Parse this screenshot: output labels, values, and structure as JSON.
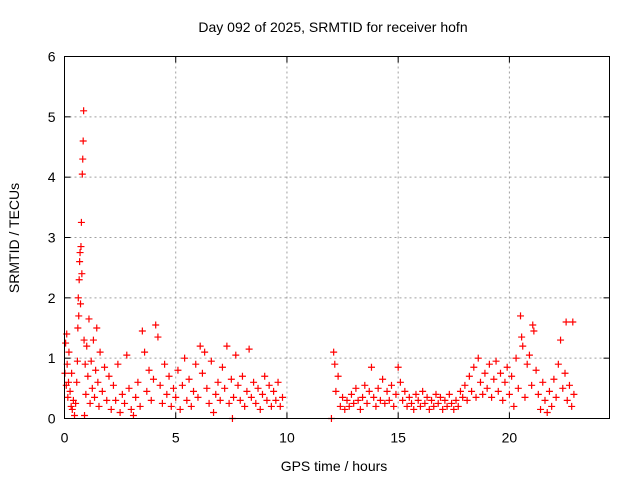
{
  "chart_data": {
    "type": "scatter",
    "title": "Day 092 of 2025, SRMTID for receiver hofn",
    "xlabel": "GPS time / hours",
    "ylabel": "SRMTID / TECUs",
    "xlim": [
      0,
      24.5
    ],
    "ylim": [
      0,
      6
    ],
    "xticks": [
      0,
      5,
      10,
      15,
      20
    ],
    "yticks": [
      0,
      1,
      2,
      3,
      4,
      5,
      6
    ],
    "xtick_labels": [
      "0",
      "5",
      "10",
      "15",
      "20"
    ],
    "ytick_labels": [
      "0",
      "1",
      "2",
      "3",
      "4",
      "5",
      "6"
    ],
    "grid": true,
    "marker": "+",
    "color": "#ff0000",
    "series": [
      {
        "name": "SRMTID",
        "points": [
          [
            0.02,
            0.75
          ],
          [
            0.05,
            1.25
          ],
          [
            0.08,
            0.55
          ],
          [
            0.1,
            1.4
          ],
          [
            0.12,
            0.9
          ],
          [
            0.15,
            0.35
          ],
          [
            0.18,
            0.6
          ],
          [
            0.2,
            1.1
          ],
          [
            0.25,
            0.45
          ],
          [
            0.3,
            0.2
          ],
          [
            0.32,
            0.75
          ],
          [
            0.35,
            0.15
          ],
          [
            0.4,
            0.3
          ],
          [
            0.45,
            0.05
          ],
          [
            0.5,
            0.25
          ],
          [
            0.55,
            0.6
          ],
          [
            0.58,
            0.95
          ],
          [
            0.6,
            1.5
          ],
          [
            0.62,
            2.0
          ],
          [
            0.64,
            1.7
          ],
          [
            0.66,
            2.3
          ],
          [
            0.68,
            2.6
          ],
          [
            0.7,
            2.75
          ],
          [
            0.72,
            1.9
          ],
          [
            0.74,
            2.85
          ],
          [
            0.76,
            3.25
          ],
          [
            0.78,
            2.4
          ],
          [
            0.8,
            4.05
          ],
          [
            0.82,
            4.3
          ],
          [
            0.84,
            4.6
          ],
          [
            0.86,
            5.1
          ],
          [
            0.88,
            1.3
          ],
          [
            0.9,
            0.05
          ],
          [
            0.93,
            0.9
          ],
          [
            0.96,
            0.4
          ],
          [
            1.0,
            1.2
          ],
          [
            1.05,
            0.7
          ],
          [
            1.1,
            1.65
          ],
          [
            1.15,
            0.25
          ],
          [
            1.2,
            0.95
          ],
          [
            1.25,
            0.5
          ],
          [
            1.3,
            1.3
          ],
          [
            1.35,
            0.35
          ],
          [
            1.4,
            0.8
          ],
          [
            1.45,
            1.5
          ],
          [
            1.5,
            0.6
          ],
          [
            1.55,
            0.2
          ],
          [
            1.6,
            1.1
          ],
          [
            1.7,
            0.45
          ],
          [
            1.8,
            0.85
          ],
          [
            1.9,
            0.3
          ],
          [
            2.0,
            0.7
          ],
          [
            2.1,
            0.15
          ],
          [
            2.2,
            0.55
          ],
          [
            2.3,
            0.3
          ],
          [
            2.4,
            0.9
          ],
          [
            2.5,
            0.1
          ],
          [
            2.6,
            0.4
          ],
          [
            2.7,
            0.25
          ],
          [
            2.8,
            1.05
          ],
          [
            2.9,
            0.5
          ],
          [
            3.0,
            0.15
          ],
          [
            3.1,
            0.05
          ],
          [
            3.2,
            0.35
          ],
          [
            3.3,
            0.6
          ],
          [
            3.4,
            0.2
          ],
          [
            3.5,
            1.45
          ],
          [
            3.6,
            1.1
          ],
          [
            3.7,
            0.45
          ],
          [
            3.8,
            0.8
          ],
          [
            3.9,
            0.3
          ],
          [
            4.0,
            0.65
          ],
          [
            4.1,
            1.55
          ],
          [
            4.2,
            1.35
          ],
          [
            4.3,
            0.55
          ],
          [
            4.4,
            0.25
          ],
          [
            4.5,
            0.9
          ],
          [
            4.6,
            0.4
          ],
          [
            4.7,
            0.7
          ],
          [
            4.8,
            0.2
          ],
          [
            4.9,
            0.5
          ],
          [
            5.0,
            0.35
          ],
          [
            5.1,
            0.8
          ],
          [
            5.2,
            0.15
          ],
          [
            5.3,
            0.55
          ],
          [
            5.4,
            1.0
          ],
          [
            5.5,
            0.3
          ],
          [
            5.6,
            0.65
          ],
          [
            5.7,
            0.2
          ],
          [
            5.8,
            0.45
          ],
          [
            5.9,
            0.9
          ],
          [
            6.0,
            0.35
          ],
          [
            6.1,
            1.2
          ],
          [
            6.2,
            0.75
          ],
          [
            6.3,
            1.1
          ],
          [
            6.4,
            0.5
          ],
          [
            6.5,
            0.25
          ],
          [
            6.6,
            0.95
          ],
          [
            6.7,
            0.1
          ],
          [
            6.8,
            0.4
          ],
          [
            6.9,
            0.6
          ],
          [
            7.0,
            0.3
          ],
          [
            7.1,
            0.85
          ],
          [
            7.2,
            0.5
          ],
          [
            7.3,
            1.2
          ],
          [
            7.4,
            0.25
          ],
          [
            7.5,
            0.65
          ],
          [
            7.55,
            0.0
          ],
          [
            7.6,
            0.35
          ],
          [
            7.7,
            1.05
          ],
          [
            7.8,
            0.55
          ],
          [
            7.9,
            0.3
          ],
          [
            8.0,
            0.7
          ],
          [
            8.1,
            0.2
          ],
          [
            8.2,
            0.45
          ],
          [
            8.3,
            1.15
          ],
          [
            8.4,
            0.35
          ],
          [
            8.5,
            0.6
          ],
          [
            8.6,
            0.25
          ],
          [
            8.7,
            0.5
          ],
          [
            8.8,
            0.15
          ],
          [
            8.9,
            0.4
          ],
          [
            9.0,
            0.7
          ],
          [
            9.1,
            0.3
          ],
          [
            9.2,
            0.55
          ],
          [
            9.3,
            0.2
          ],
          [
            9.4,
            0.45
          ],
          [
            9.5,
            0.3
          ],
          [
            9.6,
            0.6
          ],
          [
            9.7,
            0.2
          ],
          [
            9.8,
            0.35
          ],
          [
            12.0,
            0.0
          ],
          [
            12.1,
            1.1
          ],
          [
            12.15,
            0.9
          ],
          [
            12.2,
            0.45
          ],
          [
            12.3,
            0.7
          ],
          [
            12.4,
            0.2
          ],
          [
            12.5,
            0.35
          ],
          [
            12.6,
            0.15
          ],
          [
            12.7,
            0.3
          ],
          [
            12.8,
            0.2
          ],
          [
            12.9,
            0.4
          ],
          [
            13.0,
            0.25
          ],
          [
            13.1,
            0.5
          ],
          [
            13.2,
            0.3
          ],
          [
            13.3,
            0.15
          ],
          [
            13.4,
            0.35
          ],
          [
            13.5,
            0.55
          ],
          [
            13.6,
            0.25
          ],
          [
            13.7,
            0.45
          ],
          [
            13.8,
            0.85
          ],
          [
            13.9,
            0.35
          ],
          [
            14.0,
            0.2
          ],
          [
            14.1,
            0.5
          ],
          [
            14.2,
            0.3
          ],
          [
            14.3,
            0.65
          ],
          [
            14.4,
            0.25
          ],
          [
            14.5,
            0.45
          ],
          [
            14.6,
            0.3
          ],
          [
            14.7,
            0.55
          ],
          [
            14.8,
            0.2
          ],
          [
            14.9,
            0.4
          ],
          [
            15.0,
            0.85
          ],
          [
            15.1,
            0.6
          ],
          [
            15.2,
            0.3
          ],
          [
            15.3,
            0.45
          ],
          [
            15.4,
            0.2
          ],
          [
            15.5,
            0.35
          ],
          [
            15.6,
            0.25
          ],
          [
            15.7,
            0.15
          ],
          [
            15.8,
            0.4
          ],
          [
            15.9,
            0.3
          ],
          [
            16.0,
            0.2
          ],
          [
            16.1,
            0.45
          ],
          [
            16.2,
            0.25
          ],
          [
            16.3,
            0.35
          ],
          [
            16.4,
            0.15
          ],
          [
            16.5,
            0.3
          ],
          [
            16.6,
            0.2
          ],
          [
            16.7,
            0.4
          ],
          [
            16.8,
            0.25
          ],
          [
            16.9,
            0.35
          ],
          [
            17.0,
            0.15
          ],
          [
            17.1,
            0.3
          ],
          [
            17.2,
            0.2
          ],
          [
            17.3,
            0.4
          ],
          [
            17.4,
            0.25
          ],
          [
            17.5,
            0.15
          ],
          [
            17.6,
            0.3
          ],
          [
            17.7,
            0.2
          ],
          [
            17.8,
            0.45
          ],
          [
            17.9,
            0.35
          ],
          [
            18.0,
            0.55
          ],
          [
            18.1,
            0.3
          ],
          [
            18.2,
            0.7
          ],
          [
            18.3,
            0.45
          ],
          [
            18.4,
            0.85
          ],
          [
            18.5,
            0.35
          ],
          [
            18.6,
            1.0
          ],
          [
            18.7,
            0.6
          ],
          [
            18.8,
            0.4
          ],
          [
            18.9,
            0.75
          ],
          [
            19.0,
            0.5
          ],
          [
            19.1,
            0.9
          ],
          [
            19.2,
            0.35
          ],
          [
            19.3,
            0.65
          ],
          [
            19.4,
            0.95
          ],
          [
            19.5,
            0.45
          ],
          [
            19.6,
            0.75
          ],
          [
            19.7,
            0.3
          ],
          [
            19.8,
            0.6
          ],
          [
            19.9,
            0.85
          ],
          [
            20.0,
            0.4
          ],
          [
            20.1,
            0.7
          ],
          [
            20.2,
            0.2
          ],
          [
            20.3,
            1.0
          ],
          [
            20.4,
            0.5
          ],
          [
            20.5,
            1.7
          ],
          [
            20.55,
            1.35
          ],
          [
            20.6,
            1.2
          ],
          [
            20.7,
            0.35
          ],
          [
            20.8,
            0.9
          ],
          [
            20.9,
            1.05
          ],
          [
            21.0,
            0.55
          ],
          [
            21.05,
            1.55
          ],
          [
            21.1,
            1.45
          ],
          [
            21.2,
            0.8
          ],
          [
            21.3,
            0.4
          ],
          [
            21.4,
            0.15
          ],
          [
            21.5,
            0.6
          ],
          [
            21.6,
            0.3
          ],
          [
            21.7,
            0.1
          ],
          [
            21.8,
            0.45
          ],
          [
            21.9,
            0.2
          ],
          [
            22.0,
            0.65
          ],
          [
            22.1,
            0.35
          ],
          [
            22.2,
            0.9
          ],
          [
            22.3,
            1.3
          ],
          [
            22.4,
            0.5
          ],
          [
            22.5,
            0.75
          ],
          [
            22.55,
            1.6
          ],
          [
            22.6,
            0.3
          ],
          [
            22.7,
            0.55
          ],
          [
            22.8,
            0.2
          ],
          [
            22.85,
            1.6
          ],
          [
            22.9,
            0.4
          ]
        ]
      }
    ]
  }
}
